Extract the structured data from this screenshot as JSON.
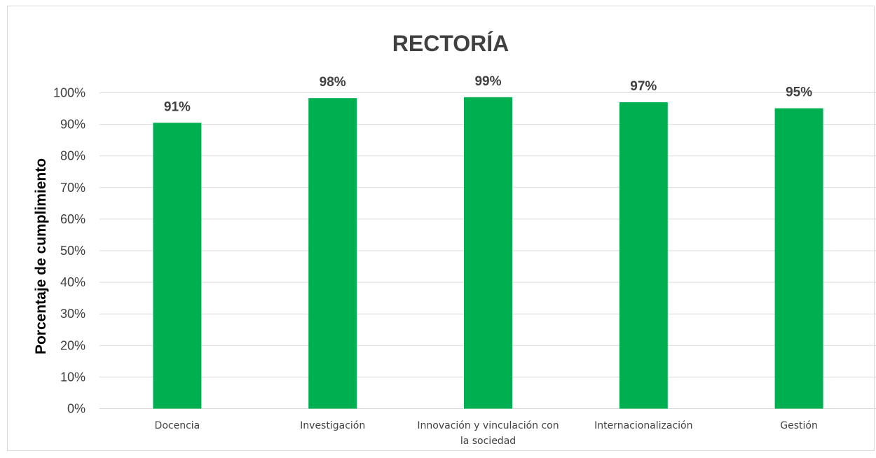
{
  "chart_data": {
    "type": "bar",
    "title": "RECTORÍA",
    "xlabel": "",
    "ylabel": "Porcentaje de cumplimiento",
    "ylim": [
      0,
      100
    ],
    "y_ticks": [
      "0%",
      "10%",
      "20%",
      "30%",
      "40%",
      "50%",
      "60%",
      "70%",
      "80%",
      "90%",
      "100%"
    ],
    "grid": "horizontal",
    "legend": "none",
    "categories": [
      [
        "Docencia"
      ],
      [
        "Investigación"
      ],
      [
        "Innovación y vinculación con",
        "la sociedad"
      ],
      [
        "Internacionalización"
      ],
      [
        "Gestión"
      ]
    ],
    "values": [
      90.5,
      98.3,
      98.6,
      97.0,
      95.1
    ],
    "data_labels": [
      "91%",
      "98%",
      "99%",
      "97%",
      "95%"
    ],
    "colors": {
      "bar": "#00B050",
      "gridline": "#d9d9d9",
      "text": "#404040"
    }
  }
}
